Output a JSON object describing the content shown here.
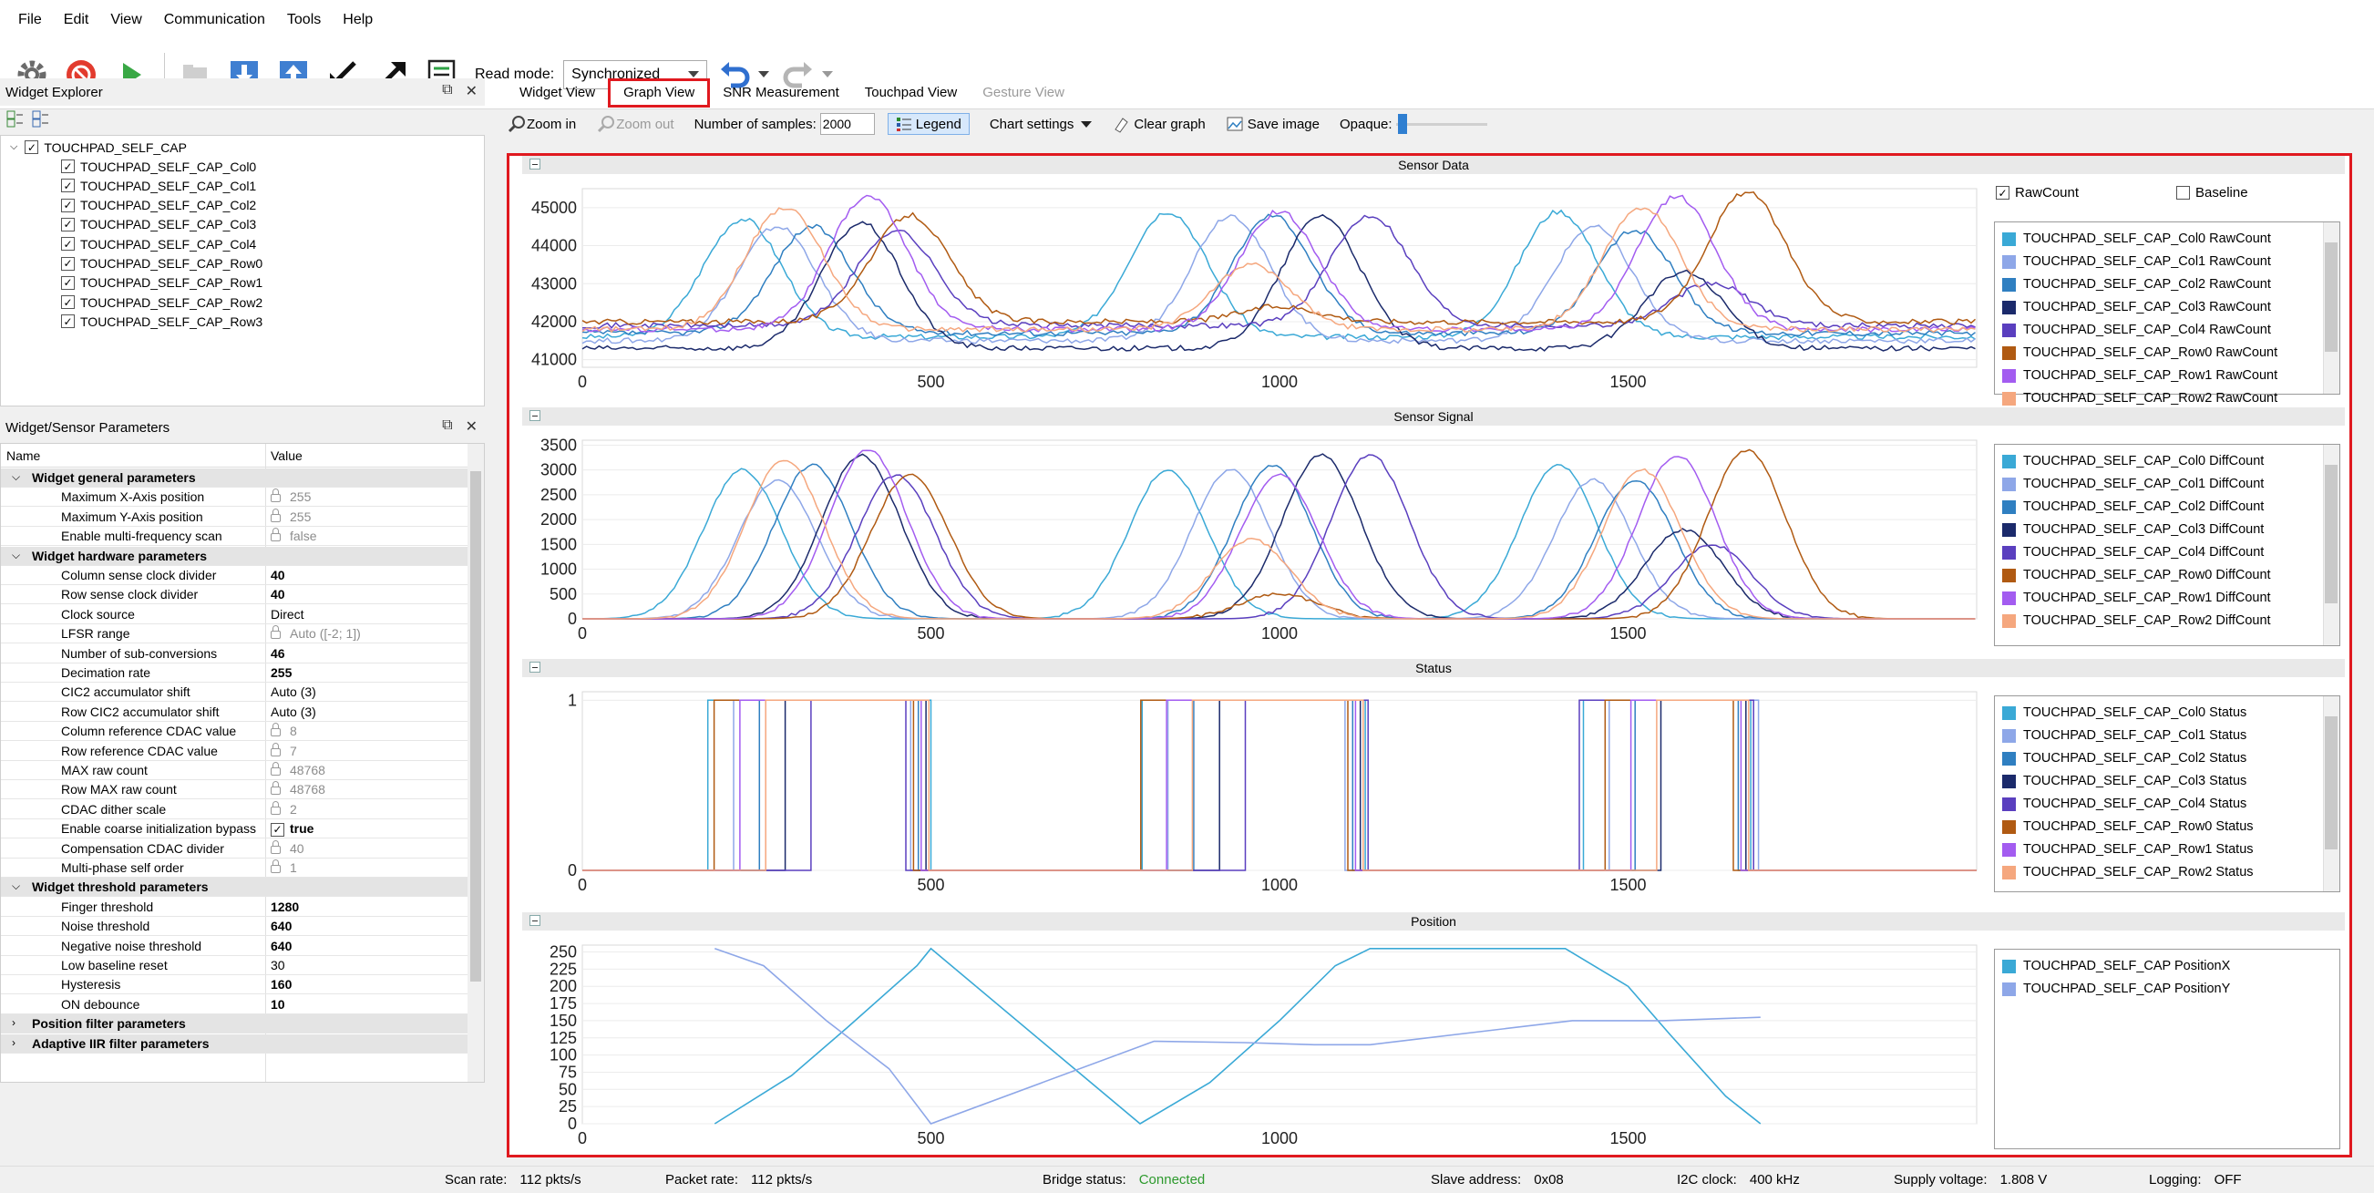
{
  "menu": [
    "File",
    "Edit",
    "View",
    "Communication",
    "Tools",
    "Help"
  ],
  "toolbar": {
    "read_mode_label": "Read mode:",
    "read_mode_value": "Synchronized"
  },
  "explorer": {
    "title": "Widget Explorer",
    "root": "TOUCHPAD_SELF_CAP",
    "items": [
      "TOUCHPAD_SELF_CAP_Col0",
      "TOUCHPAD_SELF_CAP_Col1",
      "TOUCHPAD_SELF_CAP_Col2",
      "TOUCHPAD_SELF_CAP_Col3",
      "TOUCHPAD_SELF_CAP_Col4",
      "TOUCHPAD_SELF_CAP_Row0",
      "TOUCHPAD_SELF_CAP_Row1",
      "TOUCHPAD_SELF_CAP_Row2",
      "TOUCHPAD_SELF_CAP_Row3"
    ]
  },
  "params": {
    "title": "Widget/Sensor Parameters",
    "col_name": "Name",
    "col_value": "Value",
    "rows": [
      {
        "type": "group",
        "name": "Widget general parameters"
      },
      {
        "name": "Maximum X-Axis position",
        "value": "255",
        "ro": true
      },
      {
        "name": "Maximum Y-Axis position",
        "value": "255",
        "ro": true
      },
      {
        "name": "Enable multi-frequency scan",
        "value": "false",
        "ro": true
      },
      {
        "type": "group",
        "name": "Widget hardware parameters"
      },
      {
        "name": "Column sense clock divider",
        "value": "40",
        "bold": true
      },
      {
        "name": "Row sense clock divider",
        "value": "40",
        "bold": true
      },
      {
        "name": "Clock source",
        "value": "Direct"
      },
      {
        "name": "LFSR range",
        "value": "Auto ([-2; 1])",
        "ro": true
      },
      {
        "name": "Number of sub-conversions",
        "value": "46",
        "bold": true
      },
      {
        "name": "Decimation rate",
        "value": "255",
        "bold": true
      },
      {
        "name": "CIC2 accumulator shift",
        "value": "Auto (3)"
      },
      {
        "name": "Row CIC2 accumulator shift",
        "value": "Auto (3)"
      },
      {
        "name": "Column reference CDAC value",
        "value": "8",
        "ro": true
      },
      {
        "name": "Row reference CDAC value",
        "value": "7",
        "ro": true
      },
      {
        "name": "MAX raw count",
        "value": "48768",
        "ro": true
      },
      {
        "name": "Row MAX raw count",
        "value": "48768",
        "ro": true
      },
      {
        "name": "CDAC dither scale",
        "value": "2",
        "ro": true
      },
      {
        "name": "Enable coarse initialization bypass",
        "value": "true",
        "bold": true,
        "check": true
      },
      {
        "name": "Compensation CDAC divider",
        "value": "40",
        "ro": true
      },
      {
        "name": "Multi-phase self order",
        "value": "1",
        "ro": true
      },
      {
        "type": "group",
        "name": "Widget threshold parameters"
      },
      {
        "name": "Finger threshold",
        "value": "1280",
        "bold": true
      },
      {
        "name": "Noise threshold",
        "value": "640",
        "bold": true
      },
      {
        "name": "Negative noise threshold",
        "value": "640",
        "bold": true
      },
      {
        "name": "Low baseline reset",
        "value": "30"
      },
      {
        "name": "Hysteresis",
        "value": "160",
        "bold": true
      },
      {
        "name": "ON debounce",
        "value": "10",
        "bold": true
      },
      {
        "type": "group",
        "name": "Position filter parameters"
      },
      {
        "type": "group",
        "name": "Adaptive IIR filter parameters"
      }
    ]
  },
  "tabs": [
    "Widget View",
    "Graph View",
    "SNR Measurement",
    "Touchpad View",
    "Gesture View"
  ],
  "graphbar": {
    "zoom_in": "Zoom in",
    "zoom_out": "Zoom out",
    "samples_label": "Number of samples:",
    "samples_value": "2000",
    "legend": "Legend",
    "chart_settings": "Chart settings",
    "clear_graph": "Clear graph",
    "save_image": "Save image",
    "opaque": "Opaque:"
  },
  "colors": {
    "col0": "#3aa9d6",
    "col1": "#8ea7e8",
    "col2": "#2f7fc1",
    "col3": "#1b2a6b",
    "col4": "#5a3fbf",
    "row0": "#b05a12",
    "row1": "#a35cf0",
    "row2": "#f5a77e",
    "row3": "#6aa6c7",
    "accent_red": "#e0191f",
    "connected": "#2d9a2d"
  },
  "chart_data": [
    {
      "type": "line",
      "title": "Sensor Data",
      "xlim": [
        0,
        2000
      ],
      "ylim": [
        40800,
        45500
      ],
      "xticks": [
        0,
        500,
        1000,
        1500
      ],
      "yticks": [
        41000,
        42000,
        43000,
        44000,
        45000
      ],
      "legend_toggles": {
        "rawcount": "RawCount",
        "baseline": "Baseline"
      },
      "series": [
        {
          "name": "TOUCHPAD_SELF_CAP_Col0 RawCount",
          "color": "#3aa9d6",
          "base": 41600,
          "peaks": [
            [
              230,
              44700
            ],
            [
              840,
              44900
            ],
            [
              1400,
              44900
            ]
          ]
        },
        {
          "name": "TOUCHPAD_SELF_CAP_Col1 RawCount",
          "color": "#8ea7e8",
          "base": 41500,
          "peaks": [
            [
              280,
              44500
            ],
            [
              930,
              44800
            ],
            [
              1450,
              44500
            ]
          ]
        },
        {
          "name": "TOUCHPAD_SELF_CAP_Col2 RawCount",
          "color": "#2f7fc1",
          "base": 41700,
          "peaks": [
            [
              330,
              44500
            ],
            [
              990,
              44800
            ],
            [
              1510,
              44400
            ]
          ]
        },
        {
          "name": "TOUCHPAD_SELF_CAP_Col3 RawCount",
          "color": "#1b2a6b",
          "base": 41300,
          "peaks": [
            [
              400,
              44600
            ],
            [
              1060,
              44800
            ],
            [
              1580,
              43300
            ]
          ]
        },
        {
          "name": "TOUCHPAD_SELF_CAP_Col4 RawCount",
          "color": "#5a3fbf",
          "base": 41900,
          "peaks": [
            [
              450,
              44400
            ],
            [
              1130,
              44800
            ],
            [
              1620,
              43000
            ]
          ]
        },
        {
          "name": "TOUCHPAD_SELF_CAP_Row0 RawCount",
          "color": "#b05a12",
          "base": 42000,
          "peaks": [
            [
              470,
              44800
            ],
            [
              1000,
              42400
            ],
            [
              1670,
              45400
            ]
          ]
        },
        {
          "name": "TOUCHPAD_SELF_CAP_Row1 RawCount",
          "color": "#a35cf0",
          "base": 41800,
          "peaks": [
            [
              410,
              45300
            ],
            [
              1000,
              44900
            ],
            [
              1570,
              45300
            ]
          ]
        },
        {
          "name": "TOUCHPAD_SELF_CAP_Row2 RawCount",
          "color": "#f5a77e",
          "base": 41800,
          "peaks": [
            [
              290,
              45000
            ],
            [
              960,
              43500
            ],
            [
              1520,
              45000
            ]
          ]
        }
      ]
    },
    {
      "type": "line",
      "title": "Sensor Signal",
      "xlim": [
        0,
        2000
      ],
      "ylim": [
        0,
        3600
      ],
      "xticks": [
        0,
        500,
        1000,
        1500
      ],
      "yticks": [
        0,
        500,
        1000,
        1500,
        2000,
        2500,
        3000,
        3500
      ],
      "series": [
        {
          "name": "TOUCHPAD_SELF_CAP_Col0 DiffCount",
          "color": "#3aa9d6",
          "peaks": [
            [
              230,
              3000
            ],
            [
              840,
              3000
            ],
            [
              1400,
              3100
            ]
          ]
        },
        {
          "name": "TOUCHPAD_SELF_CAP_Col1 DiffCount",
          "color": "#8ea7e8",
          "peaks": [
            [
              280,
              2800
            ],
            [
              930,
              3000
            ],
            [
              1450,
              2800
            ]
          ]
        },
        {
          "name": "TOUCHPAD_SELF_CAP_Col2 DiffCount",
          "color": "#2f7fc1",
          "peaks": [
            [
              330,
              3100
            ],
            [
              990,
              3100
            ],
            [
              1510,
              2800
            ]
          ]
        },
        {
          "name": "TOUCHPAD_SELF_CAP_Col3 DiffCount",
          "color": "#1b2a6b",
          "peaks": [
            [
              400,
              3300
            ],
            [
              1060,
              3300
            ],
            [
              1580,
              1800
            ]
          ]
        },
        {
          "name": "TOUCHPAD_SELF_CAP_Col4 DiffCount",
          "color": "#5a3fbf",
          "peaks": [
            [
              450,
              2900
            ],
            [
              1130,
              3300
            ],
            [
              1620,
              1500
            ]
          ]
        },
        {
          "name": "TOUCHPAD_SELF_CAP_Row0 DiffCount",
          "color": "#b05a12",
          "peaks": [
            [
              470,
              2900
            ],
            [
              1000,
              500
            ],
            [
              1670,
              3400
            ]
          ]
        },
        {
          "name": "TOUCHPAD_SELF_CAP_Row1 DiffCount",
          "color": "#a35cf0",
          "peaks": [
            [
              410,
              3400
            ],
            [
              1000,
              2900
            ],
            [
              1570,
              3300
            ]
          ]
        },
        {
          "name": "TOUCHPAD_SELF_CAP_Row2 DiffCount",
          "color": "#f5a77e",
          "peaks": [
            [
              290,
              3200
            ],
            [
              960,
              1600
            ],
            [
              1520,
              3000
            ]
          ]
        }
      ]
    },
    {
      "type": "line",
      "title": "Status",
      "xlim": [
        0,
        2000
      ],
      "ylim": [
        0,
        1.05
      ],
      "xticks": [
        0,
        500,
        1000,
        1500
      ],
      "yticks": [
        0,
        1
      ],
      "active_ranges": [
        [
          180,
          500
        ],
        [
          790,
          1130
        ],
        [
          1410,
          1690
        ]
      ],
      "series": [
        {
          "name": "TOUCHPAD_SELF_CAP_Col0 Status",
          "color": "#3aa9d6"
        },
        {
          "name": "TOUCHPAD_SELF_CAP_Col1 Status",
          "color": "#8ea7e8"
        },
        {
          "name": "TOUCHPAD_SELF_CAP_Col2 Status",
          "color": "#2f7fc1"
        },
        {
          "name": "TOUCHPAD_SELF_CAP_Col3 Status",
          "color": "#1b2a6b"
        },
        {
          "name": "TOUCHPAD_SELF_CAP_Col4 Status",
          "color": "#5a3fbf"
        },
        {
          "name": "TOUCHPAD_SELF_CAP_Row0 Status",
          "color": "#b05a12"
        },
        {
          "name": "TOUCHPAD_SELF_CAP_Row1 Status",
          "color": "#a35cf0"
        },
        {
          "name": "TOUCHPAD_SELF_CAP_Row2 Status",
          "color": "#f5a77e"
        }
      ]
    },
    {
      "type": "line",
      "title": "Position",
      "xlim": [
        0,
        2000
      ],
      "ylim": [
        0,
        260
      ],
      "xticks": [
        0,
        500,
        1000,
        1500
      ],
      "yticks": [
        0,
        25,
        50,
        75,
        100,
        125,
        150,
        175,
        200,
        225,
        250
      ],
      "series": [
        {
          "name": "TOUCHPAD_SELF_CAP PositionX",
          "color": "#3aa9d6",
          "points": [
            [
              190,
              0
            ],
            [
              300,
              70
            ],
            [
              380,
              140
            ],
            [
              480,
              230
            ],
            [
              500,
              255
            ],
            [
              800,
              0
            ],
            [
              900,
              60
            ],
            [
              1000,
              150
            ],
            [
              1080,
              230
            ],
            [
              1130,
              255
            ],
            [
              1410,
              255
            ],
            [
              1500,
              200
            ],
            [
              1560,
              130
            ],
            [
              1640,
              40
            ],
            [
              1690,
              0
            ]
          ]
        },
        {
          "name": "TOUCHPAD_SELF_CAP PositionY",
          "color": "#8ea7e8",
          "points": [
            [
              190,
              255
            ],
            [
              260,
              230
            ],
            [
              350,
              150
            ],
            [
              440,
              80
            ],
            [
              500,
              0
            ],
            [
              820,
              120
            ],
            [
              950,
              118
            ],
            [
              1050,
              115
            ],
            [
              1130,
              115
            ],
            [
              1420,
              150
            ],
            [
              1550,
              150
            ],
            [
              1690,
              155
            ]
          ]
        }
      ]
    }
  ],
  "statusbar": {
    "scan_rate_label": "Scan rate:",
    "scan_rate": "112 pkts/s",
    "packet_rate_label": "Packet rate:",
    "packet_rate": "112 pkts/s",
    "bridge_label": "Bridge status:",
    "bridge": "Connected",
    "slave_label": "Slave address:",
    "slave": "0x08",
    "i2c_label": "I2C clock:",
    "i2c": "400 kHz",
    "supply_label": "Supply voltage:",
    "supply": "1.808 V",
    "logging_label": "Logging:",
    "logging": "OFF"
  }
}
